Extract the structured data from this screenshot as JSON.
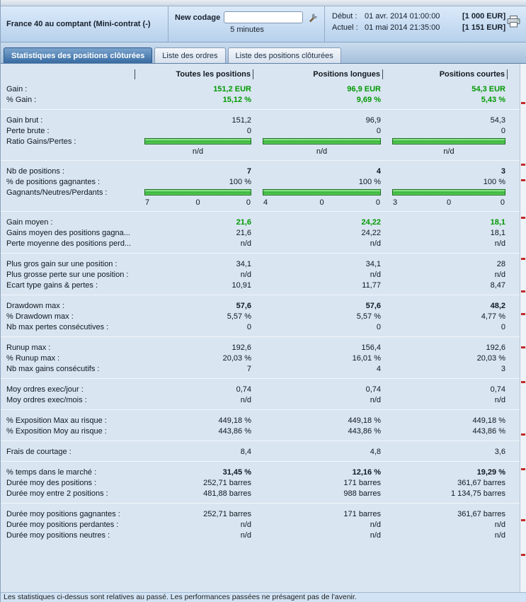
{
  "colors": {
    "gain_green": "#009900",
    "bar_green": "#36b336",
    "tab_active_blue": "#376ba2",
    "mark_red": "#c22a2a"
  },
  "header": {
    "instrument": "France 40 au comptant (Mini-contrat (-)",
    "strategy": {
      "name": "New codage",
      "input_value": "",
      "timeframe": "5 minutes"
    },
    "session": {
      "start_label": "Début :",
      "start_datetime": "01 avr. 2014 01:00:00",
      "start_equity": "[1 000 EUR]",
      "current_label": "Actuel :",
      "current_datetime": "01 mai 2014 21:35:00",
      "current_equity": "[1 151 EUR]"
    }
  },
  "tabs": [
    {
      "label": "Statistiques des positions clôturées",
      "active": true
    },
    {
      "label": "Liste des ordres",
      "active": false
    },
    {
      "label": "Liste des positions clôturées",
      "active": false
    }
  ],
  "stats_table": {
    "columns": [
      "Toutes les positions",
      "Positions longues",
      "Positions courtes"
    ],
    "groups": [
      {
        "rows": [
          {
            "label": "Gain :",
            "values": [
              "151,2 EUR",
              "96,9 EUR",
              "54,3 EUR"
            ],
            "style": "gain"
          },
          {
            "label": "% Gain :",
            "values": [
              "15,12 %",
              "9,69 %",
              "5,43 %"
            ],
            "style": "gain"
          }
        ]
      },
      {
        "rows": [
          {
            "label": "Gain brut :",
            "values": [
              "151,2",
              "96,9",
              "54,3"
            ]
          },
          {
            "label": "Perte brute :",
            "values": [
              "0",
              "0",
              "0"
            ]
          },
          {
            "label": "Ratio Gains/Pertes :",
            "type": "bar",
            "bars": [
              100,
              100,
              100
            ],
            "sub": [
              [
                "n/d"
              ],
              [
                "n/d"
              ],
              [
                "n/d"
              ]
            ]
          }
        ]
      },
      {
        "rows": [
          {
            "label": "Nb de positions :",
            "values": [
              "7",
              "4",
              "3"
            ],
            "style": "bold"
          },
          {
            "label": "% de positions gagnantes :",
            "values": [
              "100 %",
              "100 %",
              "100 %"
            ]
          },
          {
            "label": "Gagnants/Neutres/Perdants :",
            "type": "bar",
            "bars": [
              100,
              100,
              100
            ],
            "sub": [
              [
                "7",
                "0",
                "0"
              ],
              [
                "4",
                "0",
                "0"
              ],
              [
                "3",
                "0",
                "0"
              ]
            ]
          }
        ]
      },
      {
        "rows": [
          {
            "label": "Gain moyen :",
            "values": [
              "21,6",
              "24,22",
              "18,1"
            ],
            "style": "gain"
          },
          {
            "label": "Gains moyen des positions gagna...",
            "values": [
              "21,6",
              "24,22",
              "18,1"
            ]
          },
          {
            "label": "Perte moyenne des positions perd...",
            "values": [
              "n/d",
              "n/d",
              "n/d"
            ]
          }
        ]
      },
      {
        "rows": [
          {
            "label": "Plus gros gain sur une position :",
            "values": [
              "34,1",
              "34,1",
              "28"
            ]
          },
          {
            "label": "Plus grosse perte sur une position :",
            "values": [
              "n/d",
              "n/d",
              "n/d"
            ]
          },
          {
            "label": "Ecart type gains & pertes :",
            "values": [
              "10,91",
              "11,77",
              "8,47"
            ]
          }
        ]
      },
      {
        "rows": [
          {
            "label": "Drawdown max :",
            "values": [
              "57,6",
              "57,6",
              "48,2"
            ],
            "style": "bold"
          },
          {
            "label": "% Drawdown max :",
            "values": [
              "5,57 %",
              "5,57 %",
              "4,77 %"
            ]
          },
          {
            "label": "Nb max pertes consécutives :",
            "values": [
              "0",
              "0",
              "0"
            ]
          }
        ]
      },
      {
        "rows": [
          {
            "label": "Runup max :",
            "values": [
              "192,6",
              "156,4",
              "192,6"
            ]
          },
          {
            "label": "% Runup max :",
            "values": [
              "20,03 %",
              "16,01 %",
              "20,03 %"
            ]
          },
          {
            "label": "Nb max gains consécutifs :",
            "values": [
              "7",
              "4",
              "3"
            ]
          }
        ]
      },
      {
        "rows": [
          {
            "label": "Moy ordres exec/jour :",
            "values": [
              "0,74",
              "0,74",
              "0,74"
            ]
          },
          {
            "label": "Moy ordres exec/mois :",
            "values": [
              "n/d",
              "n/d",
              "n/d"
            ]
          }
        ]
      },
      {
        "rows": [
          {
            "label": "% Exposition Max au risque :",
            "values": [
              "449,18 %",
              "449,18 %",
              "449,18 %"
            ]
          },
          {
            "label": "% Exposition Moy au risque :",
            "values": [
              "443,86 %",
              "443,86 %",
              "443,86 %"
            ]
          }
        ]
      },
      {
        "rows": [
          {
            "label": "Frais de courtage :",
            "values": [
              "8,4",
              "4,8",
              "3,6"
            ]
          }
        ]
      },
      {
        "rows": [
          {
            "label": "% temps dans le marché :",
            "values": [
              "31,45 %",
              "12,16 %",
              "19,29 %"
            ],
            "style": "bold"
          },
          {
            "label": "Durée moy des positions :",
            "values": [
              "252,71 barres",
              "171 barres",
              "361,67 barres"
            ]
          },
          {
            "label": "Durée moy entre 2 positions :",
            "values": [
              "481,88 barres",
              "988 barres",
              "1 134,75 barres"
            ]
          }
        ]
      },
      {
        "rows": [
          {
            "label": "Durée moy positions gagnantes :",
            "values": [
              "252,71 barres",
              "171 barres",
              "361,67 barres"
            ]
          },
          {
            "label": "Durée moy positions perdantes :",
            "values": [
              "n/d",
              "n/d",
              "n/d"
            ]
          },
          {
            "label": "Durée moy positions neutres :",
            "values": [
              "n/d",
              "n/d",
              "n/d"
            ]
          }
        ]
      }
    ]
  },
  "right_strip": {
    "marks_y": [
      142,
      229,
      251,
      304,
      362,
      408,
      440,
      487,
      536,
      610,
      659,
      731,
      780
    ]
  },
  "footer": {
    "disclaimer": "Les statistiques ci-dessus sont relatives au passé. Les performances passées ne présagent pas de l'avenir."
  }
}
